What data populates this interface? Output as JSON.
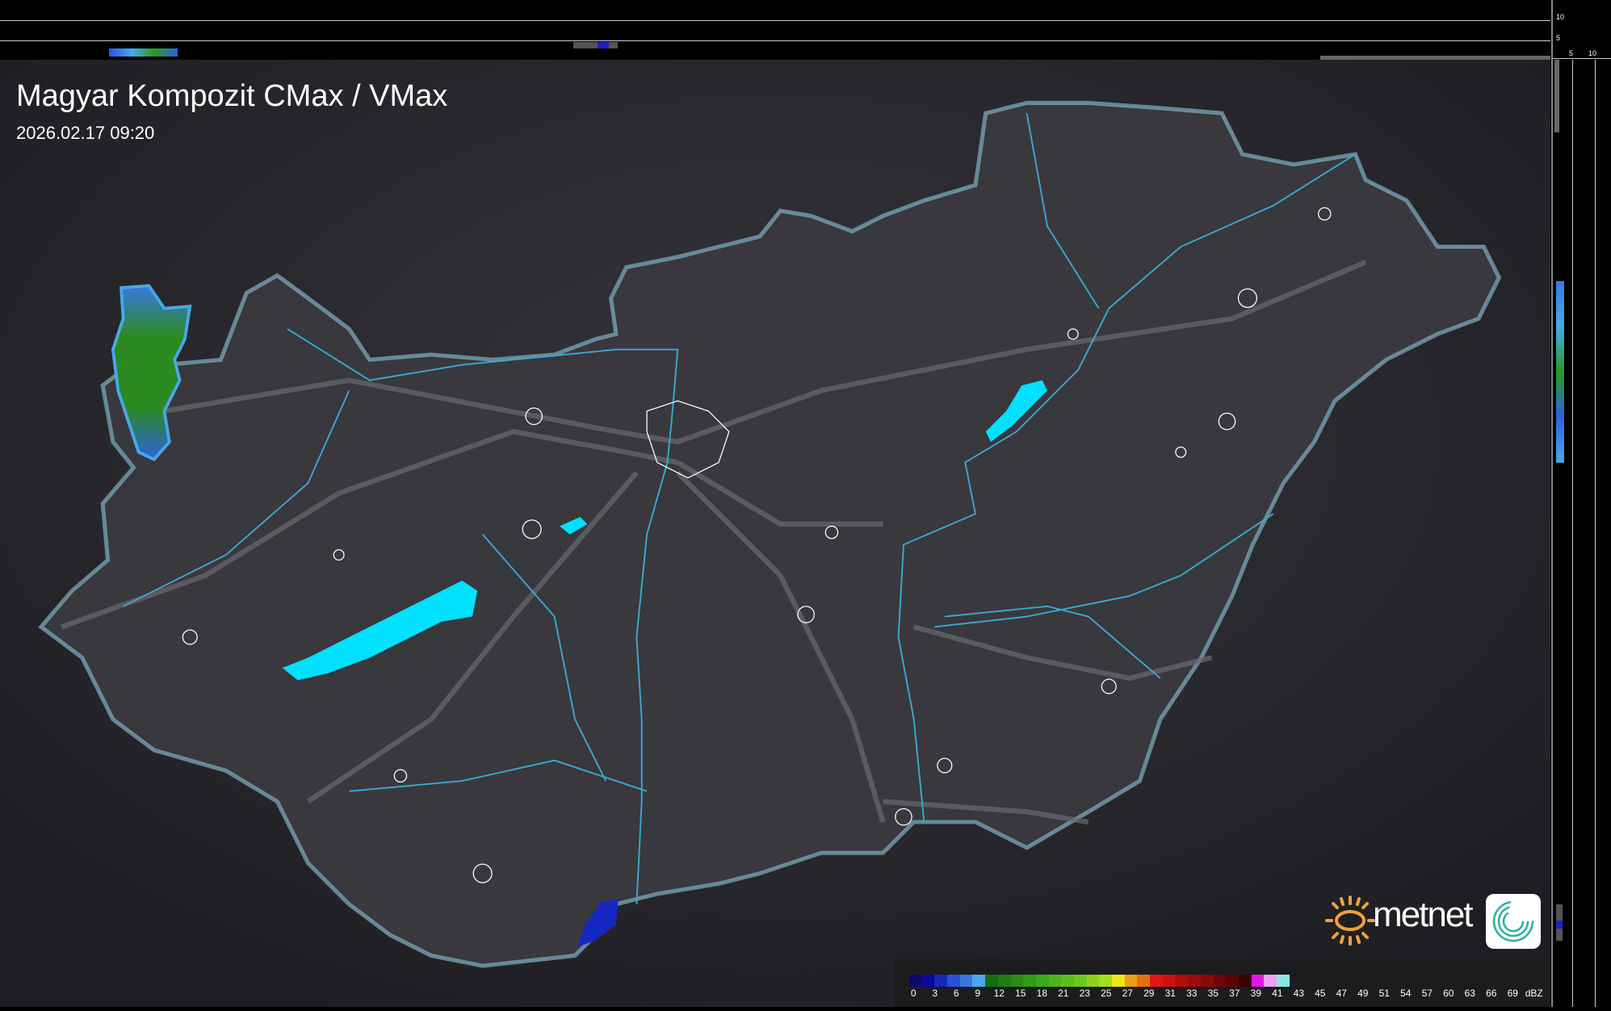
{
  "title": "Magyar Kompozit CMax / VMax",
  "timestamp": "2026.02.17 09:20",
  "profile_axes": {
    "top_ticks": [
      "10",
      "5"
    ],
    "right_ticks": [
      "5",
      "10"
    ]
  },
  "legend": {
    "unit": "dBZ",
    "values": [
      "0",
      "3",
      "6",
      "9",
      "12",
      "15",
      "18",
      "21",
      "23",
      "25",
      "27",
      "29",
      "31",
      "33",
      "35",
      "37",
      "39",
      "41",
      "43",
      "45",
      "47",
      "49",
      "51",
      "54",
      "57",
      "60",
      "63",
      "66",
      "69"
    ],
    "colors": [
      "#0a0a6e",
      "#0a0aa0",
      "#1428c0",
      "#2850d8",
      "#3878e0",
      "#48a8e8",
      "#146e14",
      "#1e7e14",
      "#288c14",
      "#329a14",
      "#3ca81e",
      "#50b41e",
      "#5ac01e",
      "#6ec81e",
      "#8cd21e",
      "#a0e01e",
      "#f0e614",
      "#eaa014",
      "#e66e14",
      "#e61414",
      "#d01010",
      "#b40a0a",
      "#a00a0a",
      "#8c0808",
      "#6e0606",
      "#5a0404",
      "#3c0202",
      "#e614e6",
      "#f0a0f0",
      "#8ce6e6"
    ]
  },
  "brand": {
    "name": "metnet",
    "accent": "#f0a040"
  },
  "colors": {
    "background": "#2a2a2e",
    "country": "#3a3a3f",
    "border": "#6fb8d0",
    "rivers": "#3aa8d0",
    "lakes": "#00e0ff"
  }
}
